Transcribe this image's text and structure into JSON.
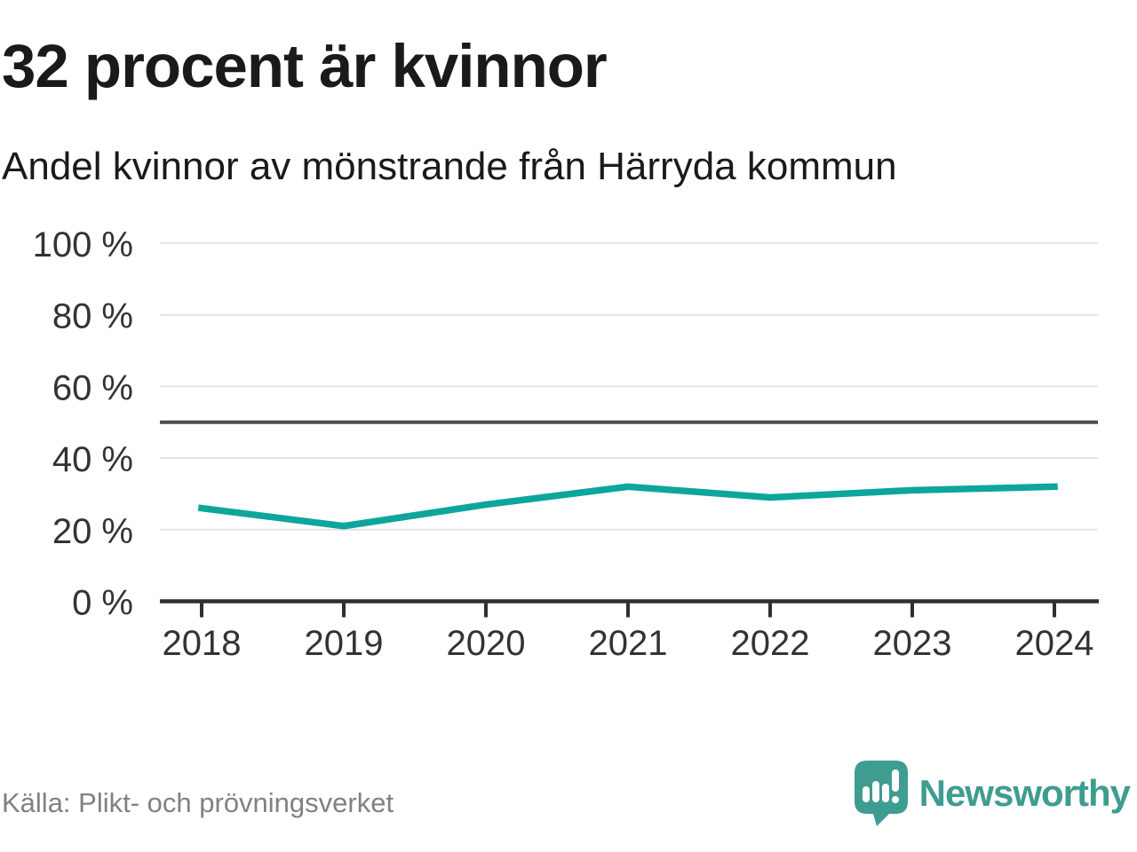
{
  "header": {
    "title": "32 procent är kvinnor",
    "subtitle": "Andel kvinnor av mönstrande från Härryda kommun"
  },
  "chart_data": {
    "type": "line",
    "x": [
      2018,
      2019,
      2020,
      2021,
      2022,
      2023,
      2024
    ],
    "series": [
      {
        "name": "Andel kvinnor av mönstrande",
        "values": [
          26,
          21,
          27,
          32,
          29,
          31,
          32
        ]
      }
    ],
    "unit": "%",
    "title": "32 procent är kvinnor",
    "subtitle": "Andel kvinnor av mönstrande från Härryda kommun",
    "xlabel": "",
    "ylabel": "",
    "ylim": [
      0,
      100
    ],
    "yticks": [
      0,
      20,
      40,
      60,
      80,
      100
    ],
    "ytick_suffix": " %",
    "reference_line_y": 50,
    "grid": true,
    "legend": "none",
    "line_color": "#0ca69c"
  },
  "footer": {
    "source": "Källa: Plikt- och prövningsverket",
    "brand_name": "Newsworthy"
  },
  "colors": {
    "accent_teal": "#0ca69c",
    "brand_teal": "#3f9c90",
    "title_text": "#1a1a1a",
    "axis_text": "#333333",
    "grid_line": "#e3e3e3",
    "reference_line": "#4d4d4d",
    "axis_line": "#2f2f2f",
    "source_text": "#818181"
  }
}
